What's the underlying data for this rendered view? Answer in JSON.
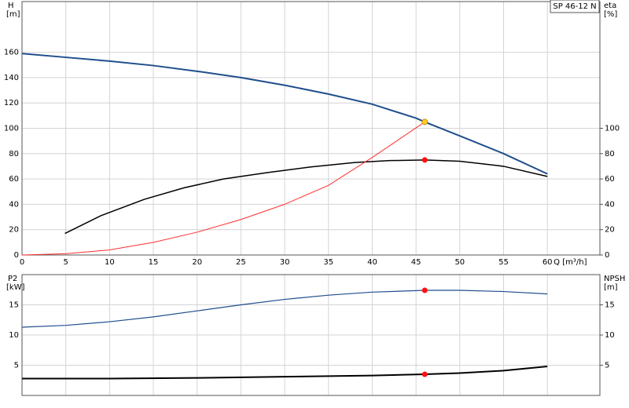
{
  "chart_data": [
    {
      "type": "line",
      "title": "SP 46-12 N",
      "ylabel": "H",
      "yunit": "[m]",
      "y2label": "eta",
      "y2unit": "[%]",
      "xlabel": "Q [m³/h]",
      "xlim": [
        0,
        66
      ],
      "xticks": [
        0,
        5,
        10,
        15,
        20,
        25,
        30,
        35,
        40,
        45,
        50,
        55,
        60
      ],
      "show_xtick_labels": true,
      "ylim": [
        0,
        200
      ],
      "yticks": [
        0,
        20,
        40,
        60,
        80,
        100,
        120,
        140,
        160
      ],
      "y2lim": [
        0,
        200
      ],
      "y2ticks": [
        0,
        20,
        40,
        60,
        80,
        100
      ],
      "grid": true,
      "series": [
        {
          "color": "#1f4e8c",
          "width": 2,
          "x": [
            0,
            5,
            10,
            15,
            20,
            25,
            30,
            35,
            40,
            45,
            46,
            50,
            55,
            60
          ],
          "values": [
            159,
            156,
            153,
            149.5,
            145,
            140,
            134,
            127,
            119,
            108,
            105,
            94,
            80,
            64
          ]
        },
        {
          "color": "#000000",
          "width": 1.5,
          "axis": "y2",
          "x": [
            4.9,
            9,
            14,
            18.5,
            23,
            28,
            33,
            38,
            42,
            46,
            50,
            55,
            60
          ],
          "values": [
            17,
            31,
            44,
            53,
            60,
            65,
            69.5,
            73,
            74.5,
            75,
            74,
            70,
            62
          ]
        },
        {
          "color": "#ff3030",
          "width": 1,
          "x": [
            0,
            5,
            10,
            15,
            20,
            25,
            30,
            35,
            40,
            43,
            46
          ],
          "values": [
            0,
            1,
            4,
            10,
            18,
            28,
            40,
            55,
            77,
            91,
            105
          ]
        }
      ],
      "markers": [
        {
          "color": "#ffd020",
          "x": 46,
          "value": 105
        },
        {
          "color": "#ff1010",
          "axis": "y2",
          "x": 46,
          "value": 75
        }
      ]
    },
    {
      "type": "line",
      "ylabel": "P2",
      "yunit": "[kW]",
      "y2label": "NPSH",
      "y2unit": "[m]",
      "xlim": [
        0,
        66
      ],
      "xticks": [
        0,
        5,
        10,
        15,
        20,
        25,
        30,
        35,
        40,
        45,
        50,
        55,
        60
      ],
      "show_xtick_labels": false,
      "ylim": [
        0,
        20
      ],
      "yticks": [
        5,
        10,
        15
      ],
      "y2lim": [
        0,
        20
      ],
      "y2ticks": [
        5,
        10,
        15
      ],
      "grid": true,
      "series": [
        {
          "color": "#1f4e8c",
          "width": 1.2,
          "x": [
            0,
            5,
            10,
            15,
            20,
            25,
            30,
            35,
            40,
            46,
            50,
            55,
            60
          ],
          "values": [
            11.3,
            11.6,
            12.2,
            13.0,
            14.0,
            15.0,
            15.9,
            16.6,
            17.1,
            17.4,
            17.4,
            17.2,
            16.8
          ]
        },
        {
          "color": "#000000",
          "width": 2,
          "axis": "y2",
          "x": [
            0,
            10,
            20,
            30,
            40,
            46,
            50,
            55,
            60
          ],
          "values": [
            2.8,
            2.8,
            2.9,
            3.1,
            3.3,
            3.5,
            3.7,
            4.1,
            4.8
          ]
        }
      ],
      "markers": [
        {
          "color": "#ff1010",
          "x": 46,
          "value": 17.4
        },
        {
          "color": "#ff1010",
          "axis": "y2",
          "x": 46,
          "value": 3.5
        }
      ]
    }
  ]
}
